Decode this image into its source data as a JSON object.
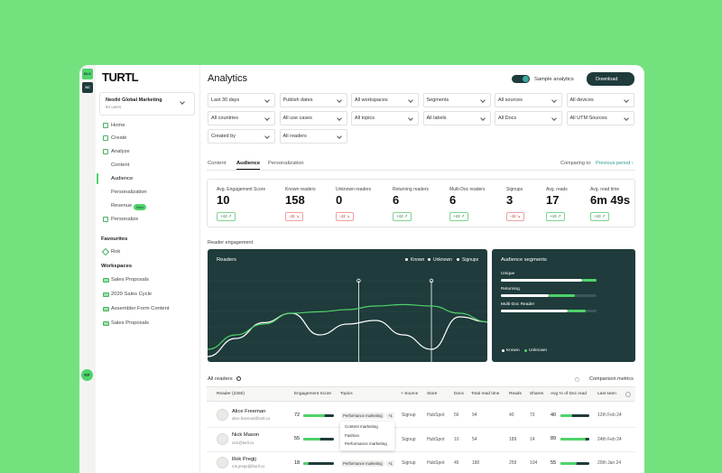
{
  "brand": "TURTL",
  "workspace_badges": [
    "BLK",
    "SC"
  ],
  "org": {
    "name": "Nestlé Global Marketing",
    "users": "84 users"
  },
  "nav": [
    {
      "label": "Home",
      "level": 0
    },
    {
      "label": "Create",
      "level": 0
    },
    {
      "label": "Analyze",
      "level": 0
    },
    {
      "label": "Content",
      "level": 1
    },
    {
      "label": "Audience",
      "level": 1,
      "active": true
    },
    {
      "label": "Personalization",
      "level": 1
    },
    {
      "label": "Revenue",
      "level": 1,
      "badge": "New"
    },
    {
      "label": "Personalize",
      "level": 0
    }
  ],
  "favourites": {
    "title": "Favourites",
    "items": [
      "Rok"
    ]
  },
  "workspaces": {
    "title": "Workspaces",
    "items": [
      "Sales Proposals",
      "2020 Sales Cycle",
      "Assembler Form Content",
      "Sales Proposals"
    ]
  },
  "user_badge": "RP",
  "header": {
    "title": "Analytics",
    "toggle": "Sample analytics",
    "download": "Download"
  },
  "filters": [
    [
      "Last 30 days",
      "Publish dates",
      "All workspaces",
      "Segments",
      "All sources",
      "All devices"
    ],
    [
      "All countries",
      "All use cases",
      "All topics",
      "All labels",
      "All Docs",
      "All UTM Sources"
    ],
    [
      "Created by",
      "All readers"
    ]
  ],
  "tabs": {
    "items": [
      "Content",
      "Audience",
      "Personalization"
    ],
    "active": 1,
    "comparing": "Comparing to:",
    "period": "Previous period ›"
  },
  "kpis": [
    {
      "label": "Avg. Engagement Score",
      "value": "10",
      "change": "+43 ↗",
      "trend": "up"
    },
    {
      "label": "Known readers",
      "value": "158",
      "change": "-43 ↘",
      "trend": "down"
    },
    {
      "label": "Unknown readers",
      "value": "0",
      "change": "-43 ↘",
      "trend": "down"
    },
    {
      "label": "Returning readers",
      "value": "6",
      "change": "+43 ↗",
      "trend": "up"
    },
    {
      "label": "Multi-Doc readers",
      "value": "6",
      "change": "+43 ↗",
      "trend": "up"
    },
    {
      "label": "Signups",
      "value": "3",
      "change": "-43 ↘",
      "trend": "down"
    },
    {
      "label": "Avg. reads",
      "value": "17",
      "change": "+43 ↗",
      "trend": "up"
    },
    {
      "label": "Avg. read time",
      "value": "6m 49s",
      "change": "+43 ↗",
      "trend": "up"
    }
  ],
  "section_title": "Reader engagement",
  "readers_chart": {
    "type": "line",
    "title": "Readers",
    "x": [
      0,
      1,
      2,
      3,
      4,
      5,
      6,
      7,
      8,
      9,
      10
    ],
    "xlim": [
      0,
      10
    ],
    "ylim": [
      0,
      100
    ],
    "series": [
      {
        "name": "Known",
        "color": "#ffffff",
        "values": [
          0,
          25,
          47,
          60,
          30,
          45,
          50,
          30,
          10,
          55,
          48
        ]
      },
      {
        "name": "Unknown",
        "color": "#4fd36a",
        "values": [
          10,
          30,
          45,
          60,
          62,
          65,
          70,
          72,
          70,
          60,
          48
        ]
      }
    ],
    "signups": {
      "name": "Signups",
      "color": "#ffffff",
      "x": [
        5.4,
        8
      ]
    }
  },
  "segments": {
    "type": "bar",
    "title": "Audience segments",
    "xlim": [
      0,
      100
    ],
    "items": [
      {
        "label": "Unique",
        "known": 85,
        "unknown": 15
      },
      {
        "label": "Returning",
        "known": 50,
        "unknown": 27
      },
      {
        "label": "Multi-Doc Reader",
        "known": 70,
        "unknown": 19
      }
    ],
    "legend": [
      {
        "name": "Known",
        "color": "#ffffff"
      },
      {
        "name": "Unknown",
        "color": "#4fd36a"
      }
    ]
  },
  "table": {
    "title": "All readers",
    "comparison": "Comparison metrics",
    "columns": [
      "Reader (2250)",
      "Engagement Score",
      "Topics",
      "+ Source",
      "Store",
      "Docs",
      "Total read time",
      "Reads",
      "Shares",
      "Avg % of Doc read",
      "Last seen"
    ],
    "rows": [
      {
        "name": "Alice Freeman",
        "email": "alice.freeman@turtl.co",
        "score": 72,
        "topic": "Performance marketing",
        "more": "+1",
        "source": "Signup",
        "store": "HubSpot",
        "docs": 56,
        "time": 94,
        "reads": 40,
        "shares": 73,
        "avg": 40,
        "last": "12th Feb 24"
      },
      {
        "name": "Nick Mason",
        "email": "nick@turtl.co",
        "score": 55,
        "source": "Signup",
        "store": "HubSpot",
        "docs": 10,
        "time": 54,
        "reads": 189,
        "shares": 14,
        "avg": 89,
        "last": "24th Feb 24"
      },
      {
        "name": "Rok Pregij",
        "email": "rok.pregelj@turtl.co",
        "score": 18,
        "topic": "Performance marketing",
        "more": "+1",
        "source": "Signup",
        "store": "HubSpot",
        "docs": 45,
        "time": 180,
        "reads": 259,
        "shares": 104,
        "avg": 55,
        "last": "20th Jan 24"
      }
    ],
    "topic_menu": [
      "Content marketing",
      "Fashion",
      "Performance marketing"
    ]
  }
}
